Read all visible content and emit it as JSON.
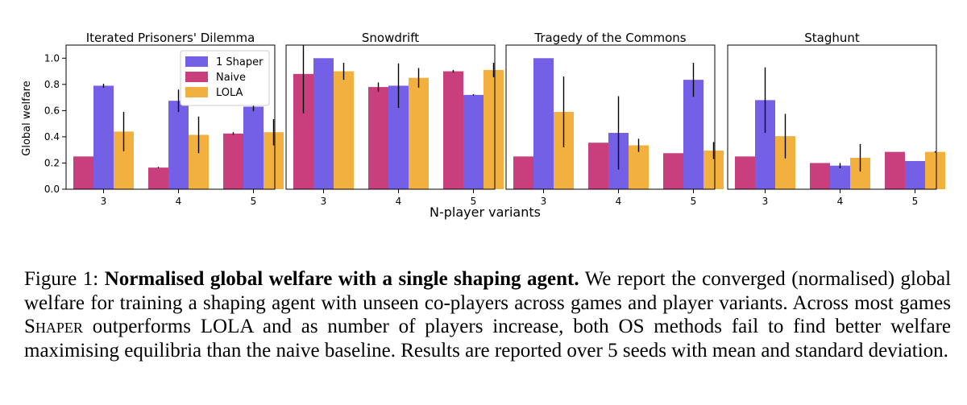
{
  "chart_data": {
    "type": "bar",
    "xlabel": "N-player variants",
    "ylabel": "Global welfare",
    "ylim": [
      0,
      1.1
    ],
    "yticks": [
      "0.0",
      "0.2",
      "0.4",
      "0.6",
      "0.8",
      "1.0"
    ],
    "categories": [
      "3",
      "4",
      "5"
    ],
    "legend_location": "upper-right of first panel",
    "series_styles": [
      {
        "name": "1 Shaper",
        "color": "#7460e6"
      },
      {
        "name": "Naive",
        "color": "#c93e7c"
      },
      {
        "name": "LOLA",
        "color": "#f2b03e"
      }
    ],
    "panels": [
      {
        "title": "Iterated Prisoners' Dilemma",
        "show_legend": true,
        "bars": [
          [
            {
              "series": "Naive",
              "value": 0.25,
              "err": 0
            },
            {
              "series": "1 Shaper",
              "value": 0.79,
              "err": 0.015
            },
            {
              "series": "LOLA",
              "value": 0.44,
              "err": 0.15
            }
          ],
          [
            {
              "series": "Naive",
              "value": 0.165,
              "err": 0.005
            },
            {
              "series": "1 Shaper",
              "value": 0.675,
              "err": 0.085
            },
            {
              "series": "LOLA",
              "value": 0.415,
              "err": 0.14
            }
          ],
          [
            {
              "series": "Naive",
              "value": 0.425,
              "err": 0.01
            },
            {
              "series": "1 Shaper",
              "value": 0.63,
              "err": 0.035
            },
            {
              "series": "LOLA",
              "value": 0.435,
              "err": 0.1
            }
          ]
        ]
      },
      {
        "title": "Snowdrift",
        "show_legend": false,
        "bars": [
          [
            {
              "series": "Naive",
              "value": 0.88,
              "err": 0.3
            },
            {
              "series": "1 Shaper",
              "value": 1.0,
              "err": 0
            },
            {
              "series": "LOLA",
              "value": 0.9,
              "err": 0.065
            }
          ],
          [
            {
              "series": "Naive",
              "value": 0.78,
              "err": 0.035
            },
            {
              "series": "1 Shaper",
              "value": 0.79,
              "err": 0.17
            },
            {
              "series": "LOLA",
              "value": 0.85,
              "err": 0.075
            }
          ],
          [
            {
              "series": "Naive",
              "value": 0.9,
              "err": 0.01
            },
            {
              "series": "1 Shaper",
              "value": 0.72,
              "err": 0.005
            },
            {
              "series": "LOLA",
              "value": 0.91,
              "err": 0.055
            }
          ]
        ]
      },
      {
        "title": "Tragedy of the Commons",
        "show_legend": false,
        "bars": [
          [
            {
              "series": "Naive",
              "value": 0.25,
              "err": 0
            },
            {
              "series": "1 Shaper",
              "value": 1.0,
              "err": 0
            },
            {
              "series": "LOLA",
              "value": 0.59,
              "err": 0.27
            }
          ],
          [
            {
              "series": "Naive",
              "value": 0.355,
              "err": 0
            },
            {
              "series": "1 Shaper",
              "value": 0.43,
              "err": 0.28
            },
            {
              "series": "LOLA",
              "value": 0.335,
              "err": 0.05
            }
          ],
          [
            {
              "series": "Naive",
              "value": 0.275,
              "err": 0
            },
            {
              "series": "1 Shaper",
              "value": 0.835,
              "err": 0.13
            },
            {
              "series": "LOLA",
              "value": 0.295,
              "err": 0.065
            }
          ]
        ]
      },
      {
        "title": "Staghunt",
        "show_legend": false,
        "bars": [
          [
            {
              "series": "Naive",
              "value": 0.25,
              "err": 0
            },
            {
              "series": "1 Shaper",
              "value": 0.68,
              "err": 0.25
            },
            {
              "series": "LOLA",
              "value": 0.405,
              "err": 0.17
            }
          ],
          [
            {
              "series": "Naive",
              "value": 0.2,
              "err": 0
            },
            {
              "series": "1 Shaper",
              "value": 0.18,
              "err": 0.02
            },
            {
              "series": "LOLA",
              "value": 0.24,
              "err": 0.105
            }
          ],
          [
            {
              "series": "Naive",
              "value": 0.285,
              "err": 0
            },
            {
              "series": "1 Shaper",
              "value": 0.215,
              "err": 0
            },
            {
              "series": "LOLA",
              "value": 0.285,
              "err": 0.005
            }
          ]
        ]
      }
    ]
  },
  "caption": {
    "label": "Figure 1:",
    "bold": "Normalised global welfare with a single shaping agent.",
    "text_before": "We report the converged (normalised) global welfare for training a shaping agent with unseen co-players across games and player variants. Across most games",
    "method": "Shaper",
    "text_after": "outperforms LOLA and as number of players increase, both OS methods fail to find better welfare maximising equilibria than the naive baseline. Results are reported over 5 seeds with mean and standard deviation."
  }
}
